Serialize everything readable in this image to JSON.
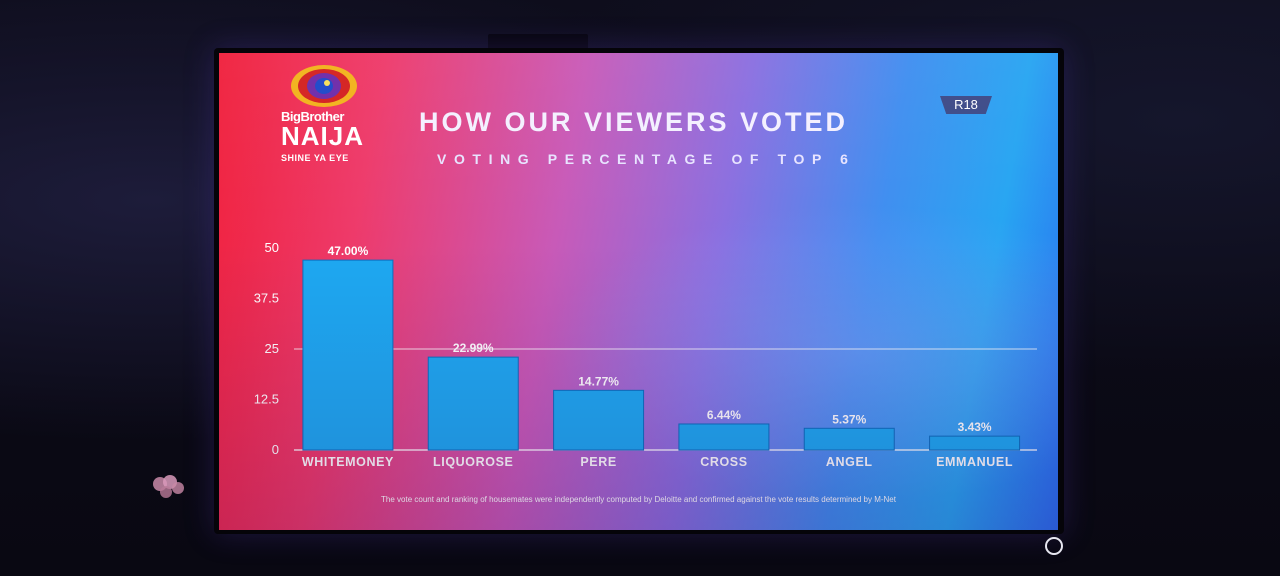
{
  "logo": {
    "line1": "BigBrother",
    "line2": "NAIJA",
    "tagline": "SHINE YA EYE"
  },
  "header": {
    "title": "HOW OUR VIEWERS VOTED",
    "subtitle": "VOTING PERCENTAGE OF TOP 6",
    "rating": "R18"
  },
  "footnote": "The vote count and ranking of housemates were independently computed by Deloitte and confirmed against the vote results determined by M-Net",
  "colors": {
    "bar": "#1ea9f2",
    "bar_stroke": "#0f6fbf",
    "text": "#ffffff"
  },
  "chart_data": {
    "type": "bar",
    "title": "HOW OUR VIEWERS VOTED",
    "subtitle": "VOTING PERCENTAGE OF TOP 6",
    "categories": [
      "WHITEMONEY",
      "LIQUOROSE",
      "PERE",
      "CROSS",
      "ANGEL",
      "EMMANUEL"
    ],
    "values": [
      47.0,
      22.99,
      14.77,
      6.44,
      5.37,
      3.43
    ],
    "value_labels": [
      "47.00%",
      "22.99%",
      "14.77%",
      "6.44%",
      "5.37%",
      "3.43%"
    ],
    "yticks": [
      "0",
      "12.5",
      "25",
      "37.5",
      "50"
    ],
    "ylim": [
      0,
      50
    ],
    "grid": "single line at 25",
    "xlabel": "",
    "ylabel": ""
  }
}
